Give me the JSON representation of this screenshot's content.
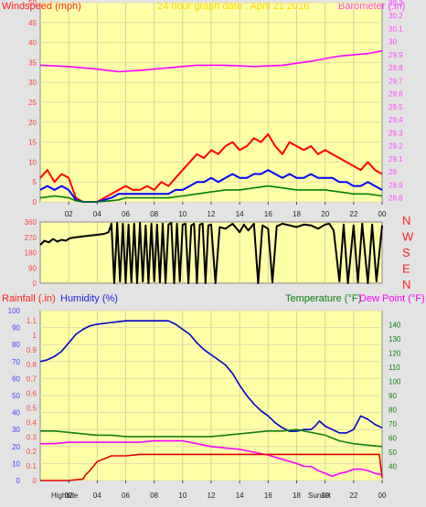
{
  "header": {
    "left": "Windspeed (mph)",
    "center": "24 hour graph date : April 21 2016",
    "right": "Barometer (.in)"
  },
  "mid_header": {
    "left": "Rainfall (.in)",
    "humidity": "Humidity (%)",
    "temperature": "Temperature (°F)",
    "dewpoint": "Dew Point (°F)"
  },
  "bottom_labels": {
    "hightide": "Hightide",
    "sunset": "Sunset"
  },
  "colors": {
    "plot_bg": "#ffffa8",
    "gust": "#ff0000",
    "wind": "#0000ff",
    "wind_low": "#008000",
    "barometer": "#ff00ff",
    "humidity": "#0000cc",
    "temperature": "#108010",
    "dewpoint": "#ff00ff",
    "rainfall": "#dd0000",
    "axis_wind": "#ff4040",
    "axis_baro": "#ff44ff",
    "axis_humid": "#4444ff",
    "axis_temp": "#108010",
    "axis_rain": "#ff4040",
    "dir_axis": "#ff4040",
    "dir_letters": "#ff2020",
    "header_title": "#ffd700"
  },
  "chart_data": [
    {
      "type": "line",
      "name": "wind_barometer",
      "x_ticks": [
        "02",
        "04",
        "06",
        "08",
        "10",
        "12",
        "14",
        "16",
        "18",
        "20",
        "22",
        "00"
      ],
      "y_left_ticks": [
        "0",
        "5",
        "10",
        "15",
        "20",
        "25",
        "30",
        "35",
        "40",
        "45",
        "50"
      ],
      "y_left_range": [
        0,
        50
      ],
      "y_right_ticks": [
        "28.8",
        "28.9",
        "29",
        "29.1",
        "29.2",
        "29.3",
        "29.4",
        "29.5",
        "29.6",
        "29.7",
        "29.8",
        "29.9",
        "30",
        "30.1",
        "30.2",
        "30.3"
      ],
      "y_right_range": [
        28.77,
        30.3
      ],
      "series": [
        {
          "key": "barometer",
          "axis": "right",
          "x": [
            0,
            2,
            4,
            5.5,
            7,
            9,
            11,
            13,
            15,
            17,
            19,
            21,
            23,
            24
          ],
          "y": [
            29.82,
            29.81,
            29.79,
            29.77,
            29.78,
            29.8,
            29.82,
            29.82,
            29.81,
            29.82,
            29.85,
            29.89,
            29.91,
            29.93
          ]
        },
        {
          "key": "gust",
          "axis": "left",
          "x": [
            0,
            0.5,
            1,
            1.5,
            2,
            2.5,
            3,
            3.5,
            4,
            4.5,
            5,
            5.5,
            6,
            6.5,
            7,
            7.5,
            8,
            8.5,
            9,
            9.5,
            10,
            10.5,
            11,
            11.5,
            12,
            12.5,
            13,
            13.5,
            14,
            14.5,
            15,
            15.5,
            16,
            16.5,
            17,
            17.5,
            18,
            18.5,
            19,
            19.5,
            20,
            20.5,
            21,
            21.5,
            22,
            22.5,
            23,
            23.5,
            24
          ],
          "y": [
            6,
            8,
            5,
            7,
            6,
            1,
            0,
            0,
            0,
            1,
            2,
            3,
            4,
            3,
            3,
            4,
            3,
            5,
            4,
            6,
            8,
            10,
            12,
            11,
            13,
            12,
            14,
            15,
            13,
            14,
            16,
            15,
            17,
            14,
            12,
            15,
            14,
            13,
            14,
            12,
            13,
            12,
            11,
            10,
            9,
            8,
            10,
            8,
            7
          ]
        },
        {
          "key": "wind",
          "axis": "left",
          "x": [
            0,
            0.5,
            1,
            1.5,
            2,
            2.5,
            3,
            3.5,
            4,
            4.5,
            5,
            5.5,
            6,
            6.5,
            7,
            7.5,
            8,
            8.5,
            9,
            9.5,
            10,
            10.5,
            11,
            11.5,
            12,
            12.5,
            13,
            13.5,
            14,
            14.5,
            15,
            15.5,
            16,
            16.5,
            17,
            17.5,
            18,
            18.5,
            19,
            19.5,
            20,
            20.5,
            21,
            21.5,
            22,
            22.5,
            23,
            23.5,
            24
          ],
          "y": [
            3,
            4,
            3,
            4,
            3,
            0.5,
            0,
            0,
            0,
            0.5,
            1,
            2,
            2,
            2,
            2,
            2,
            2,
            2,
            2,
            3,
            3,
            4,
            5,
            5,
            6,
            5,
            6,
            7,
            6,
            6,
            7,
            7,
            8,
            7,
            6,
            7,
            6,
            6,
            7,
            6,
            6,
            6,
            5,
            5,
            4,
            4,
            5,
            4,
            3
          ]
        },
        {
          "key": "wind_low",
          "axis": "left",
          "x": [
            0,
            1,
            2,
            2.5,
            3,
            4,
            5,
            5.5,
            6,
            7,
            8,
            9,
            10,
            11,
            12,
            13,
            14,
            15,
            16,
            17,
            18,
            19,
            20,
            21,
            22,
            23,
            24
          ],
          "y": [
            1,
            1.5,
            1,
            0.3,
            0,
            0,
            0.3,
            0.5,
            1,
            1,
            1,
            1,
            1.5,
            2,
            2.5,
            3,
            3,
            3.5,
            4,
            3.5,
            3,
            3,
            3,
            2.5,
            2,
            2,
            1.5
          ]
        }
      ]
    },
    {
      "type": "line",
      "name": "wind_direction",
      "x_ticks": [],
      "y_left_ticks": [
        "0",
        "90",
        "180",
        "270",
        "360"
      ],
      "y_left_range": [
        0,
        360
      ],
      "right_letters": [
        "N",
        "W",
        "S",
        "E",
        "N"
      ],
      "series": [
        {
          "key": "direction",
          "axis": "left",
          "x": [
            0,
            0.3,
            0.6,
            0.9,
            1.2,
            1.5,
            1.8,
            2.1,
            2.5,
            3,
            3.5,
            4,
            4.5,
            4.8,
            5,
            5.2,
            5.4,
            5.6,
            5.8,
            6,
            6.2,
            6.4,
            6.6,
            6.8,
            7,
            7.2,
            7.4,
            7.6,
            7.8,
            8,
            8.2,
            8.4,
            8.6,
            8.8,
            9,
            9.2,
            9.4,
            9.6,
            9.8,
            10,
            10.2,
            10.4,
            10.6,
            10.8,
            11,
            11.2,
            11.4,
            11.6,
            11.8,
            12,
            12.3,
            12.6,
            13,
            13.5,
            14,
            14.3,
            14.6,
            15,
            15.3,
            15.6,
            16,
            16.3,
            16.6,
            17,
            17.5,
            18,
            18.5,
            19,
            19.5,
            20,
            20.3,
            20.6,
            21,
            21.3,
            21.6,
            22,
            22.3,
            22.6,
            23,
            23.3,
            23.6,
            24
          ],
          "y": [
            225,
            250,
            240,
            260,
            245,
            255,
            250,
            265,
            270,
            275,
            280,
            285,
            290,
            300,
            350,
            0,
            355,
            10,
            350,
            0,
            345,
            5,
            350,
            0,
            355,
            10,
            340,
            0,
            350,
            10,
            345,
            5,
            350,
            0,
            345,
            355,
            0,
            350,
            10,
            345,
            350,
            0,
            340,
            350,
            0,
            345,
            350,
            0,
            340,
            345,
            0,
            330,
            320,
            350,
            300,
            345,
            310,
            350,
            0,
            340,
            320,
            5,
            335,
            350,
            340,
            330,
            345,
            340,
            320,
            345,
            350,
            310,
            10,
            345,
            0,
            340,
            5,
            350,
            0,
            345,
            10,
            340
          ]
        }
      ]
    },
    {
      "type": "line",
      "name": "rain_humidity_temperature",
      "x_ticks": [
        "02",
        "04",
        "06",
        "08",
        "10",
        "12",
        "14",
        "16",
        "18",
        "20",
        "22",
        "00"
      ],
      "y_left_ticks": [
        "0",
        "10",
        "20",
        "30",
        "40",
        "50",
        "60",
        "70",
        "80",
        "90",
        "100"
      ],
      "y_left_range": [
        0,
        100
      ],
      "y_rain_ticks": [
        "0",
        "0.1",
        "0.2",
        "0.3",
        "0.4",
        "0.5",
        "0.6",
        "0.7",
        "0.8",
        "0.9",
        "1",
        "1.1"
      ],
      "y_rain_range": [
        0,
        1.17
      ],
      "y_right_ticks": [
        "40",
        "50",
        "60",
        "70",
        "80",
        "90",
        "100",
        "110",
        "120",
        "130",
        "140"
      ],
      "y_right_range": [
        30,
        150
      ],
      "series": [
        {
          "key": "humidity",
          "axis": "left",
          "x": [
            0,
            0.5,
            1,
            1.5,
            2,
            2.5,
            3,
            3.5,
            4,
            5,
            6,
            7,
            8,
            9,
            9.5,
            10,
            10.5,
            11,
            11.5,
            12,
            12.5,
            13,
            13.5,
            14,
            14.5,
            15,
            15.5,
            16,
            16.5,
            17,
            17.5,
            18,
            18.5,
            19,
            19.3,
            19.6,
            20,
            20.5,
            21,
            21.5,
            22,
            22.5,
            23,
            23.5,
            24
          ],
          "y": [
            70,
            71,
            73,
            76,
            81,
            86,
            89,
            91,
            92,
            93,
            94,
            94,
            94,
            94,
            92,
            89,
            86,
            81,
            77,
            74,
            71,
            68,
            63,
            56,
            50,
            45,
            41,
            38,
            34,
            31,
            29,
            29,
            30,
            30,
            32,
            35,
            32,
            30,
            28,
            28,
            30,
            38,
            36,
            33,
            31
          ]
        },
        {
          "key": "temperature",
          "axis": "right",
          "x": [
            0,
            1,
            2,
            3,
            4,
            5,
            6,
            7,
            8,
            9,
            10,
            11,
            12,
            13,
            14,
            15,
            16,
            17,
            18,
            19,
            20,
            21,
            22,
            23,
            24
          ],
          "y": [
            65,
            65,
            64,
            63,
            62,
            62,
            61,
            61,
            61,
            61,
            61,
            61,
            61,
            62,
            63,
            64,
            65,
            65,
            66,
            64,
            62,
            58,
            56,
            55,
            54
          ]
        },
        {
          "key": "dewpoint",
          "axis": "right",
          "x": [
            0,
            1,
            2,
            3,
            4,
            5,
            6,
            7,
            8,
            9,
            10,
            11,
            12,
            13,
            14,
            15,
            16,
            17,
            18,
            18.5,
            19,
            19.5,
            20,
            20.5,
            21,
            21.5,
            22,
            22.5,
            23,
            23.5,
            24
          ],
          "y": [
            56,
            56,
            57,
            57,
            57,
            57,
            57,
            57,
            58,
            58,
            58,
            56,
            54,
            53,
            52,
            50,
            48,
            45,
            42,
            40,
            40,
            37,
            35,
            33,
            35,
            36,
            38,
            38,
            37,
            35,
            34
          ]
        },
        {
          "key": "rainfall",
          "axis": "rain",
          "x": [
            0,
            0.5,
            1,
            2,
            3,
            3.2,
            3.5,
            4,
            4.5,
            5,
            6,
            7,
            10,
            15,
            18,
            20,
            21,
            22,
            23,
            23.8,
            24
          ],
          "y": [
            0,
            0,
            0,
            0,
            0.01,
            0.04,
            0.07,
            0.13,
            0.15,
            0.17,
            0.17,
            0.18,
            0.18,
            0.18,
            0.18,
            0.18,
            0.18,
            0.18,
            0.18,
            0.18,
            0.02
          ]
        }
      ]
    }
  ]
}
